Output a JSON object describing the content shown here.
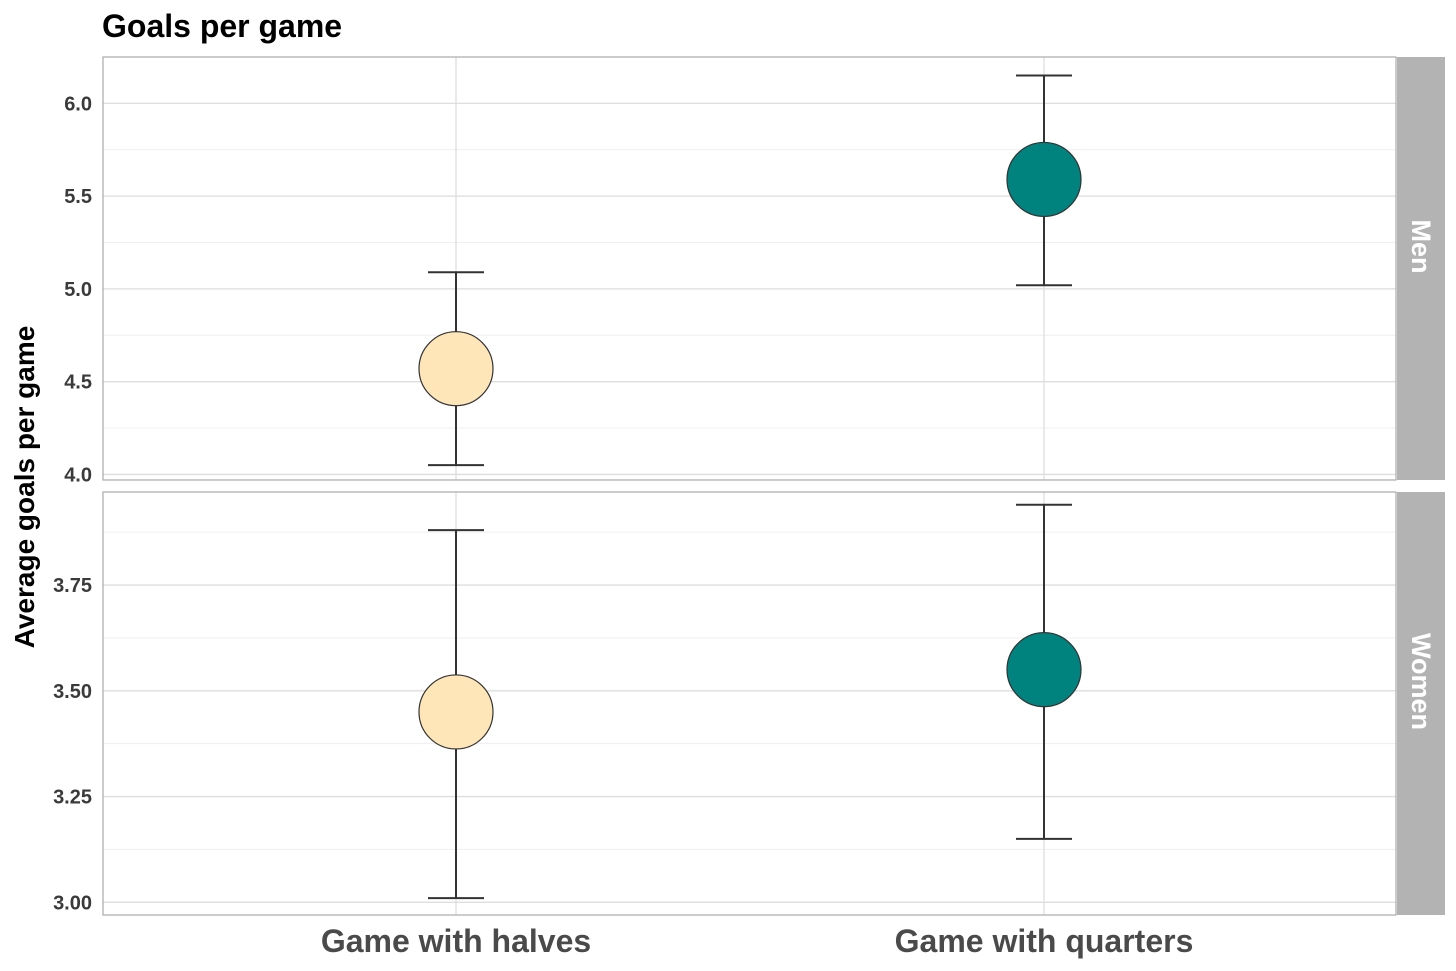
{
  "chart_data": {
    "type": "scatter",
    "title": "Goals per game",
    "ylabel": "Average goals per game",
    "xlabel": "",
    "categories": [
      "Game with halves",
      "Game with quarters"
    ],
    "point_colors": [
      "#ffe6b8",
      "#00827f"
    ],
    "grid": true,
    "facets": [
      {
        "label": "Men",
        "ylim": [
          3.97,
          6.25
        ],
        "yticks": [
          "4.0",
          "4.5",
          "5.0",
          "5.5",
          "6.0"
        ],
        "points": [
          {
            "x": "Game with halves",
            "y": 4.57,
            "low": 4.05,
            "high": 5.09
          },
          {
            "x": "Game with quarters",
            "y": 5.59,
            "low": 5.02,
            "high": 6.15
          }
        ]
      },
      {
        "label": "Women",
        "ylim": [
          2.97,
          3.97
        ],
        "yticks": [
          "3.00",
          "3.25",
          "3.50",
          "3.75"
        ],
        "points": [
          {
            "x": "Game with halves",
            "y": 3.45,
            "low": 3.01,
            "high": 3.88
          },
          {
            "x": "Game with quarters",
            "y": 3.55,
            "low": 3.15,
            "high": 3.94
          }
        ]
      }
    ]
  }
}
